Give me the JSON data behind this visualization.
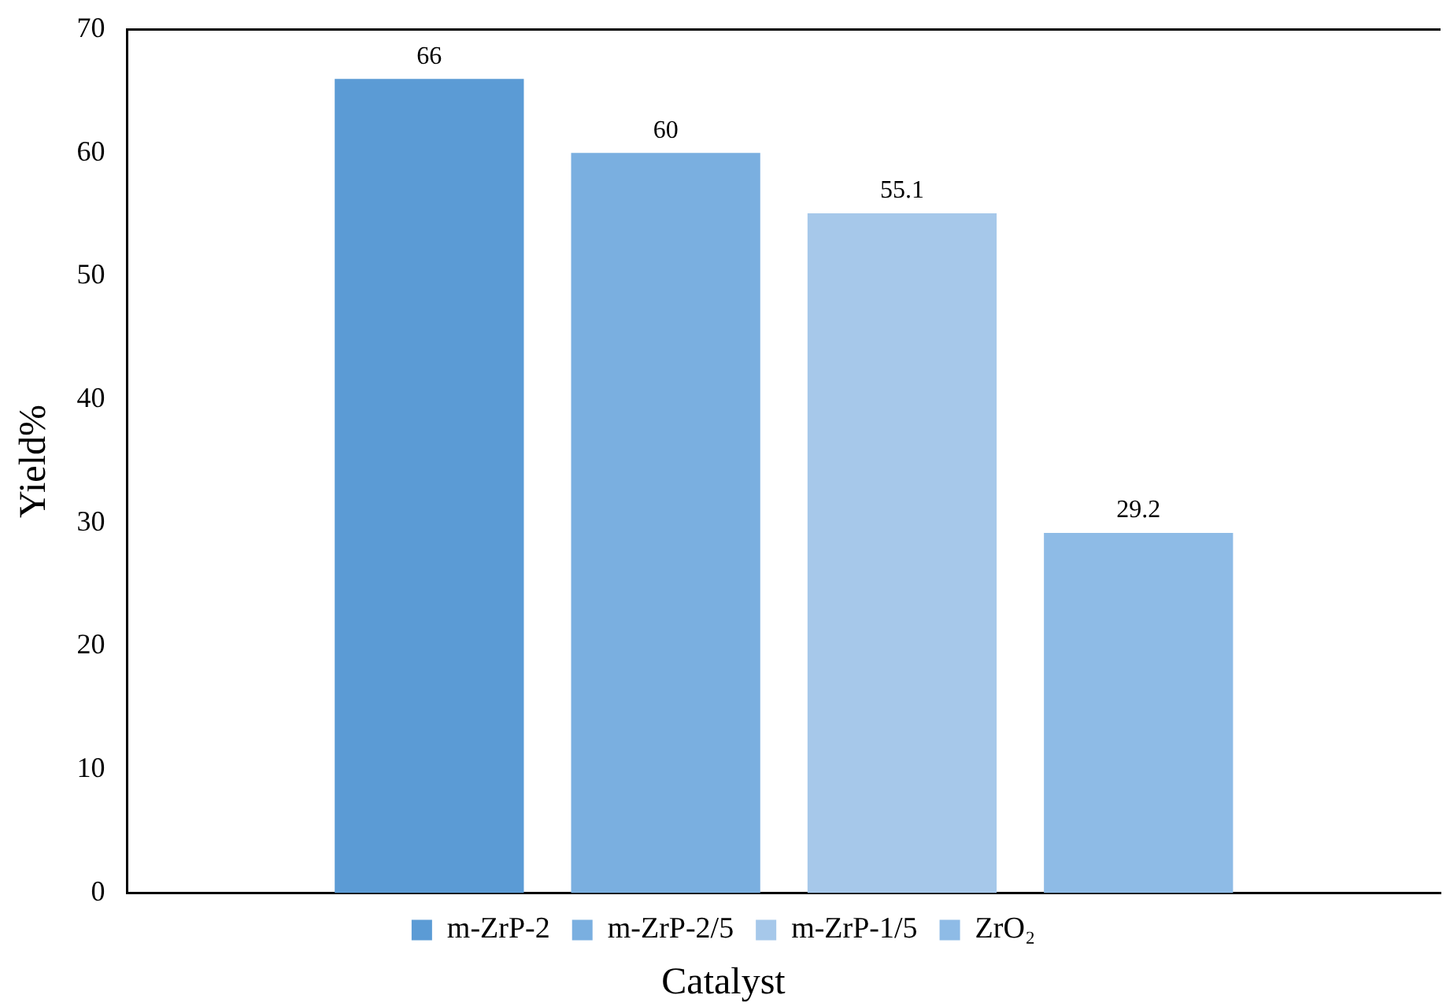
{
  "chart_data": {
    "type": "bar",
    "xlabel": "Catalyst",
    "ylabel": "Yield%",
    "categories": [
      null
    ],
    "series": [
      {
        "name": "m-ZrP-2",
        "color": "#5b9bd5",
        "values": [
          66
        ]
      },
      {
        "name": "m-ZrP-2/5",
        "color": "#7aafe0",
        "values": [
          60
        ]
      },
      {
        "name": "m-ZrP-1/5",
        "color": "#a6c8ea",
        "values": [
          55.1
        ]
      },
      {
        "name": "ZrO₂",
        "color": "#8ebbe6",
        "values": [
          29.2
        ]
      }
    ],
    "ylim": [
      0,
      70
    ],
    "yticks": [
      0,
      10,
      20,
      30,
      40,
      50,
      60,
      70
    ],
    "grid": false,
    "legend": "bottom",
    "data_labels": true
  }
}
